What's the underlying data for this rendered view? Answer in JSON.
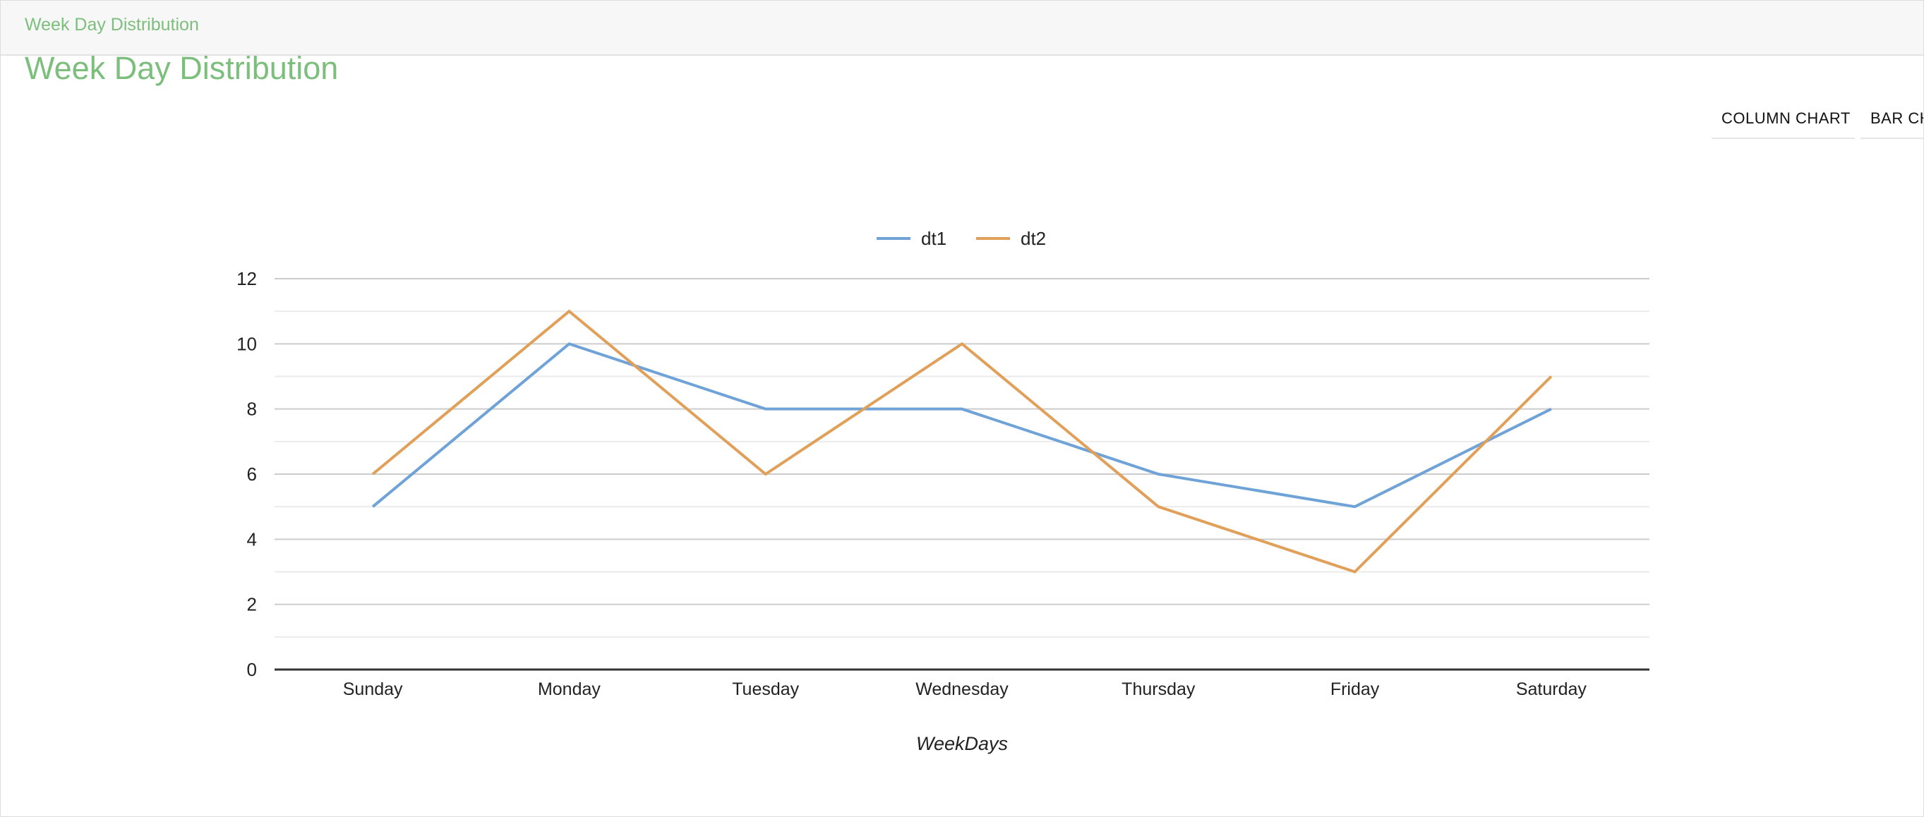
{
  "header": {
    "title": "Week Day Distribution"
  },
  "main": {
    "title": "Week Day Distribution",
    "chart_tabs": [
      {
        "label": "COLUMN CHART"
      },
      {
        "label": "BAR CH"
      }
    ]
  },
  "colors": {
    "dt1": "#6fa3d8",
    "dt2": "#e0a05a",
    "title": "#7cbf7c"
  },
  "chart_data": {
    "type": "line",
    "categories": [
      "Sunday",
      "Monday",
      "Tuesday",
      "Wednesday",
      "Thursday",
      "Friday",
      "Saturday"
    ],
    "series": [
      {
        "name": "dt1",
        "values": [
          5,
          10,
          8,
          8,
          6,
          5,
          8
        ]
      },
      {
        "name": "dt2",
        "values": [
          6,
          11,
          6,
          10,
          5,
          3,
          9
        ]
      }
    ],
    "title": "",
    "xlabel": "WeekDays",
    "ylabel": "",
    "ylim": [
      0,
      12
    ],
    "yticks": [
      0,
      2,
      4,
      6,
      8,
      10,
      12
    ],
    "grid": true,
    "legend": "top-center"
  }
}
